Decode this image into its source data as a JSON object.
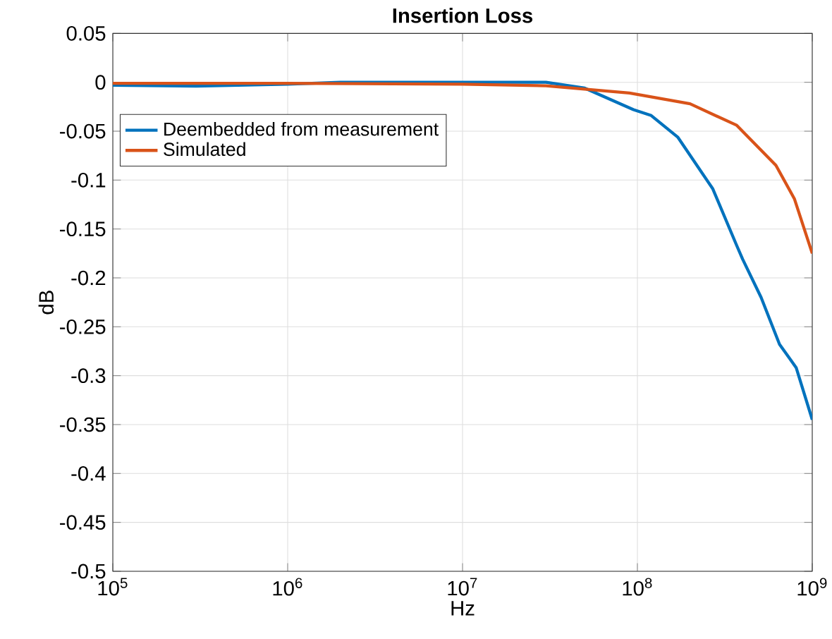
{
  "chart_data": {
    "type": "line",
    "title": "Insertion Loss",
    "xlabel": "Hz",
    "ylabel": "dB",
    "log": "x",
    "grid": true,
    "legend": "top left",
    "line_style": "solid",
    "marker": "none",
    "xlim": [
      100000,
      1000000000
    ],
    "xticks": [
      {
        "value": 100000,
        "label": "10$^{5}$"
      },
      {
        "value": 1000000,
        "label": "10$^{6}$"
      },
      {
        "value": 10000000,
        "label": "10$^{7}$"
      },
      {
        "value": 100000000,
        "label": "10$^{8}$"
      },
      {
        "value": 1000000000,
        "label": "10$^{9}$"
      }
    ],
    "ylim": [
      -0.5,
      0.05
    ],
    "yticks": [
      -0.5,
      -0.45,
      -0.4,
      -0.35,
      -0.3,
      -0.25,
      -0.2,
      -0.15,
      -0.1,
      -0.05,
      0,
      0.05
    ],
    "series": [
      {
        "name": "Deembedded from measurement",
        "color": "#0072bd",
        "x": [
          100000,
          300000,
          1000000,
          2000000,
          10000000,
          30000000,
          50000000,
          95000000,
          120000000,
          170000000,
          270000000,
          370000000,
          400000000,
          510000000,
          650000000,
          740000000,
          810000000,
          1000000000
        ],
        "values": [
          -0.003,
          -0.004,
          -0.002,
          0,
          0,
          0,
          -0.006,
          -0.028,
          -0.034,
          -0.056,
          -0.109,
          -0.167,
          -0.181,
          -0.22,
          -0.268,
          -0.282,
          -0.292,
          -0.345
        ]
      },
      {
        "name": "Simulated",
        "color": "#d95319",
        "x": [
          100000,
          1000000,
          10000000,
          30000000,
          90000000,
          200000000,
          370000000,
          620000000,
          790000000,
          1000000000
        ],
        "values": [
          -0.001,
          -0.001,
          -0.002,
          -0.0035,
          -0.011,
          -0.022,
          -0.044,
          -0.085,
          -0.119,
          -0.175
        ]
      }
    ]
  }
}
